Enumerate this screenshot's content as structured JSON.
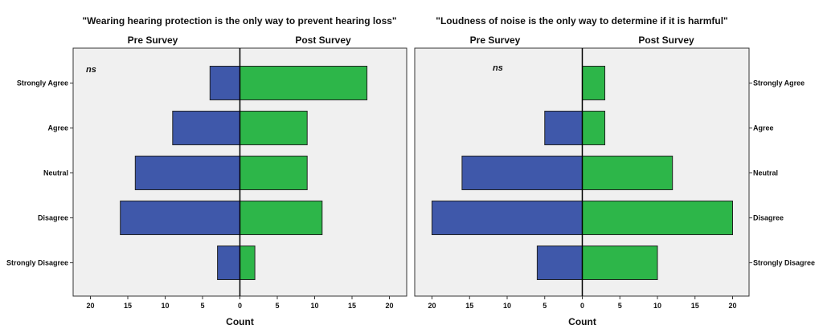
{
  "chart_data": [
    {
      "type": "bar",
      "orientation": "horizontal-diverging",
      "title": "\"Wearing hearing protection is the only way to prevent hearing loss\"",
      "categories": [
        "Strongly Agree",
        "Agree",
        "Neutral",
        "Disagree",
        "Strongly Disagree"
      ],
      "series": [
        {
          "name": "Pre Survey",
          "values": [
            4,
            9,
            14,
            16,
            3
          ],
          "color": "#3F58AA"
        },
        {
          "name": "Post Survey",
          "values": [
            17,
            9,
            9,
            11,
            2
          ],
          "color": "#2DB649"
        }
      ],
      "xlabel": "Count",
      "xlim": [
        0,
        20
      ],
      "ticks": [
        "20",
        "15",
        "10",
        "5",
        "0",
        "5",
        "10",
        "15",
        "20"
      ],
      "annotation": "ns",
      "category_axis_side": "left",
      "grid": false,
      "plot_background": "#F0F0F0"
    },
    {
      "type": "bar",
      "orientation": "horizontal-diverging",
      "title": "\"Loudness of noise is the only way to determine if it is harmful\"",
      "categories": [
        "Strongly Agree",
        "Agree",
        "Neutral",
        "Disagree",
        "Strongly Disagree"
      ],
      "series": [
        {
          "name": "Pre Survey",
          "values": [
            0,
            5,
            16,
            20,
            6
          ],
          "color": "#3F58AA"
        },
        {
          "name": "Post Survey",
          "values": [
            3,
            3,
            12,
            20,
            10
          ],
          "color": "#2DB649"
        }
      ],
      "xlabel": "Count",
      "xlim": [
        0,
        20
      ],
      "ticks": [
        "20",
        "15",
        "10",
        "5",
        "0",
        "5",
        "10",
        "15",
        "20"
      ],
      "annotation": "ns",
      "category_axis_side": "right",
      "grid": false,
      "plot_background": "#F0F0F0"
    }
  ]
}
